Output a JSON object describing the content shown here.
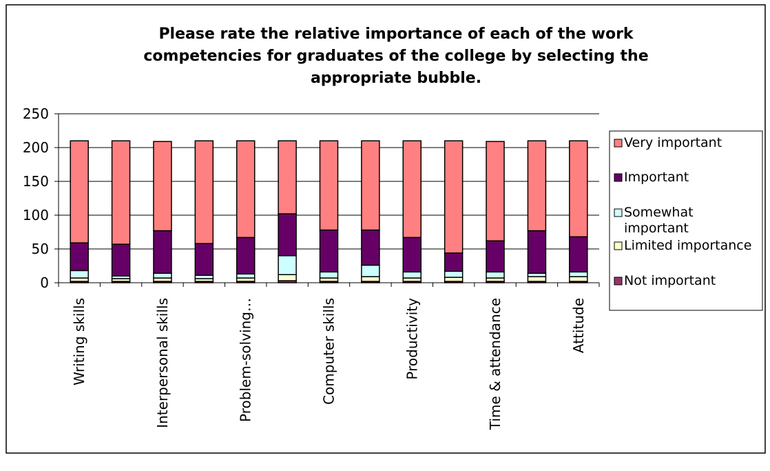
{
  "chart_data": {
    "type": "bar",
    "stacked": true,
    "title_lines": [
      "Please rate the relative importance of each of the work",
      "competencies for graduates of the college by selecting the",
      "appropriate bubble."
    ],
    "xlabel": "",
    "ylabel": "",
    "ylim": [
      0,
      250
    ],
    "yticks": [
      "0",
      "50",
      "100",
      "150",
      "200",
      "250"
    ],
    "categories": [
      "Writing skills",
      "",
      "Interpersonal skills",
      "",
      "Problem-solving…",
      "",
      "Computer skills",
      "",
      "Productivity",
      "",
      "Time & attendance",
      "",
      "Attitude"
    ],
    "series": [
      {
        "name": "Not important",
        "color": "#993366",
        "values": [
          2,
          2,
          2,
          2,
          2,
          3,
          2,
          2,
          2,
          2,
          2,
          2,
          2
        ]
      },
      {
        "name": "Limited importance",
        "color": "#FFFFCC",
        "values": [
          5,
          4,
          5,
          4,
          5,
          9,
          5,
          7,
          5,
          6,
          5,
          7,
          7
        ]
      },
      {
        "name": "Somewhat important",
        "color": "#CCFFFF",
        "values": [
          11,
          4,
          7,
          5,
          6,
          28,
          9,
          17,
          9,
          9,
          9,
          5,
          7
        ]
      },
      {
        "name": "Important",
        "color": "#660066",
        "values": [
          41,
          47,
          63,
          47,
          54,
          62,
          62,
          52,
          51,
          27,
          46,
          63,
          52
        ]
      },
      {
        "name": "Very important",
        "color": "#FF8080",
        "values": [
          151,
          153,
          132,
          152,
          143,
          108,
          132,
          132,
          143,
          166,
          147,
          133,
          142
        ]
      }
    ],
    "legend_order": [
      "Very important",
      "Important",
      "Somewhat important",
      "Limited importance",
      "Not important"
    ],
    "legend_labels": [
      [
        "Very important"
      ],
      [
        "Important"
      ],
      [
        "Somewhat",
        "important"
      ],
      [
        "Limited importance"
      ],
      [
        "Not important"
      ]
    ],
    "legend_position": "right",
    "grid": true
  }
}
